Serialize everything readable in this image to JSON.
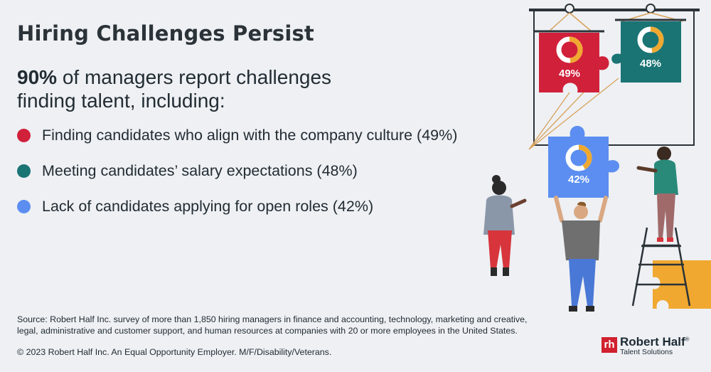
{
  "header": {
    "title": "Hiring Challenges Persist",
    "headline_pct": "90%",
    "headline_rest_1": " of managers report challenges",
    "headline_rest_2": "finding talent, including:"
  },
  "chart_data": {
    "type": "table",
    "title": "Hiring Challenges Persist",
    "categories": [
      "Finding candidates who align with the company culture",
      "Meeting candidates’ salary expectations",
      "Lack of candidates applying for open roles"
    ],
    "values": [
      49,
      48,
      42
    ],
    "series": [
      {
        "name": "",
        "values": [
          49,
          48,
          42
        ]
      }
    ]
  },
  "items": [
    {
      "text": "Finding candidates who align with the company culture (49%)",
      "color": "#d1203a"
    },
    {
      "text": "Meeting candidates’ salary expectations (48%)",
      "color": "#1a7474"
    },
    {
      "text": "Lack of candidates applying for open roles (42%)",
      "color": "#5b8ef0"
    }
  ],
  "puzzle_labels": [
    "49%",
    "48%",
    "42%"
  ],
  "colors": {
    "red": "#d1203a",
    "teal": "#1a7474",
    "blue": "#5b8ef0",
    "yellow": "#f0a830",
    "background": "#eef0f4",
    "logo_red": "#d1202f"
  },
  "footer": {
    "source": "Source: Robert Half Inc. survey of more than 1,850  hiring managers in finance and accounting, technology, marketing and creative, legal, administrative and customer support, and human resources at companies with 20 or more employees in the United States.",
    "copyright": "© 2023 Robert Half Inc. An Equal Opportunity Employer. M/F/Disability/Veterans."
  },
  "logo": {
    "mark": "rh",
    "name": "Robert Half",
    "reg": "®",
    "sub": "Talent Solutions"
  }
}
